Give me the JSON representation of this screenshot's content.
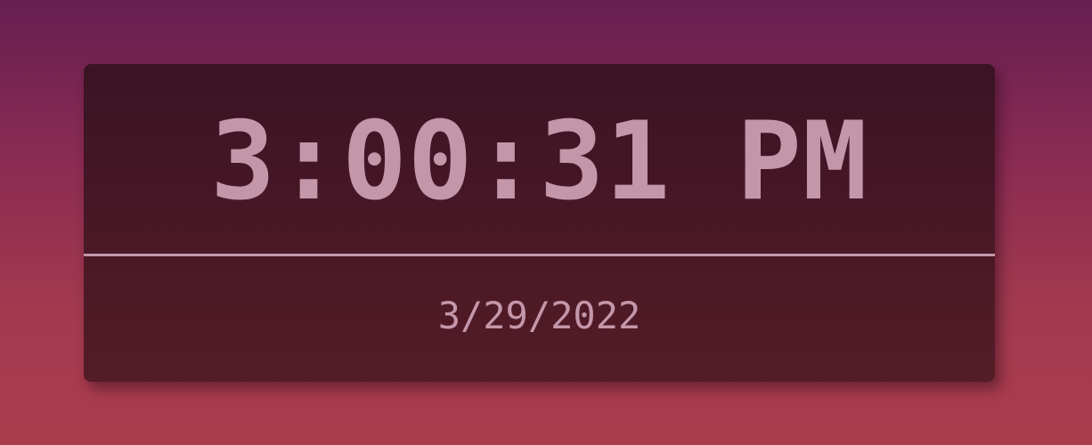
{
  "clock": {
    "time": "3:00:31 PM",
    "date": "3/29/2022"
  },
  "colors": {
    "text": "#c496a9",
    "card": "#4b1826",
    "background_top": "#661f52",
    "background_bottom": "#aa3d4c"
  }
}
